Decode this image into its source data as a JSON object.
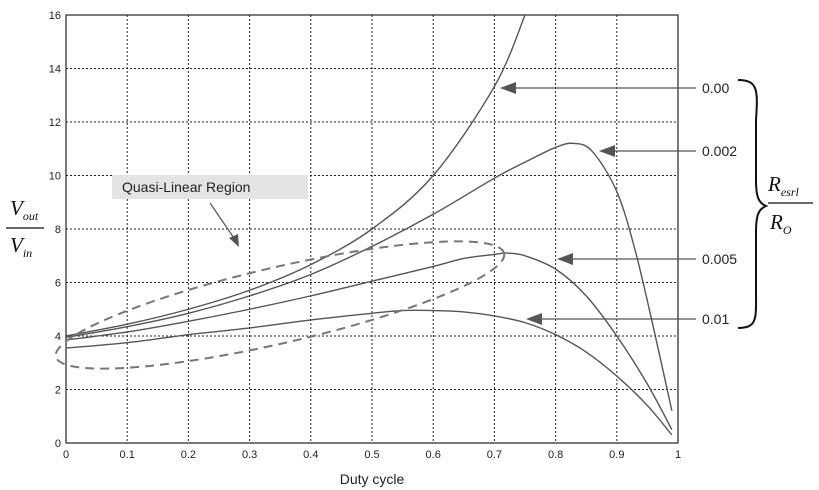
{
  "chart_data": {
    "type": "line",
    "title": "",
    "xlabel": "Duty cycle",
    "ylabel": {
      "numerator": "V",
      "numerator_sub": "out",
      "denominator": "V",
      "denominator_sub": "in"
    },
    "xlim": [
      0,
      1
    ],
    "ylim": [
      0,
      16
    ],
    "xticks": [
      0,
      0.1,
      0.2,
      0.3,
      0.4,
      0.5,
      0.6,
      0.7,
      0.8,
      0.9,
      1
    ],
    "xtick_labels": [
      "0",
      "0.1",
      "0.2",
      "0.3",
      "0.4",
      "0.5",
      "0.6",
      "0.7",
      "0.8",
      "0.9",
      "1"
    ],
    "yticks": [
      0,
      2,
      4,
      6,
      8,
      10,
      12,
      14,
      16
    ],
    "ytick_labels": [
      "0",
      "2",
      "4",
      "6",
      "8",
      "10",
      "12",
      "14",
      "16"
    ],
    "grid": true,
    "series": [
      {
        "name": "0.00",
        "x": [
          0,
          0.1,
          0.2,
          0.3,
          0.4,
          0.5,
          0.6,
          0.7,
          0.75,
          0.76
        ],
        "y": [
          4.0,
          4.44,
          5.0,
          5.71,
          6.67,
          8.0,
          10.0,
          13.33,
          16.0,
          16.67
        ]
      },
      {
        "name": "0.002",
        "x": [
          0,
          0.1,
          0.2,
          0.3,
          0.4,
          0.5,
          0.6,
          0.7,
          0.75,
          0.8,
          0.83,
          0.86,
          0.9,
          0.93,
          0.96,
          0.99
        ],
        "y": [
          3.95,
          4.35,
          4.85,
          5.5,
          6.3,
          7.35,
          8.55,
          9.9,
          10.5,
          11.05,
          11.2,
          10.9,
          9.4,
          7.2,
          4.3,
          1.2
        ]
      },
      {
        "name": "0.005",
        "x": [
          0,
          0.1,
          0.2,
          0.3,
          0.4,
          0.5,
          0.6,
          0.65,
          0.7,
          0.72,
          0.75,
          0.8,
          0.85,
          0.9,
          0.95,
          0.99
        ],
        "y": [
          3.85,
          4.15,
          4.55,
          5.0,
          5.5,
          6.05,
          6.6,
          6.9,
          7.05,
          7.1,
          7.0,
          6.5,
          5.5,
          4.0,
          2.2,
          0.5
        ]
      },
      {
        "name": "0.01",
        "x": [
          0,
          0.1,
          0.2,
          0.3,
          0.4,
          0.5,
          0.55,
          0.6,
          0.65,
          0.7,
          0.75,
          0.8,
          0.85,
          0.9,
          0.95,
          0.99
        ],
        "y": [
          3.55,
          3.75,
          4.05,
          4.3,
          4.6,
          4.85,
          4.95,
          4.95,
          4.9,
          4.75,
          4.5,
          4.05,
          3.4,
          2.5,
          1.4,
          0.3
        ]
      }
    ],
    "annotations": {
      "region_label": "Quasi-Linear Region",
      "series_labels": [
        "0.00",
        "0.002",
        "0.005",
        "0.01"
      ],
      "brace_label": {
        "numerator": "R",
        "numerator_sub": "esrl",
        "denominator": "R",
        "denominator_sub": "O"
      }
    }
  }
}
